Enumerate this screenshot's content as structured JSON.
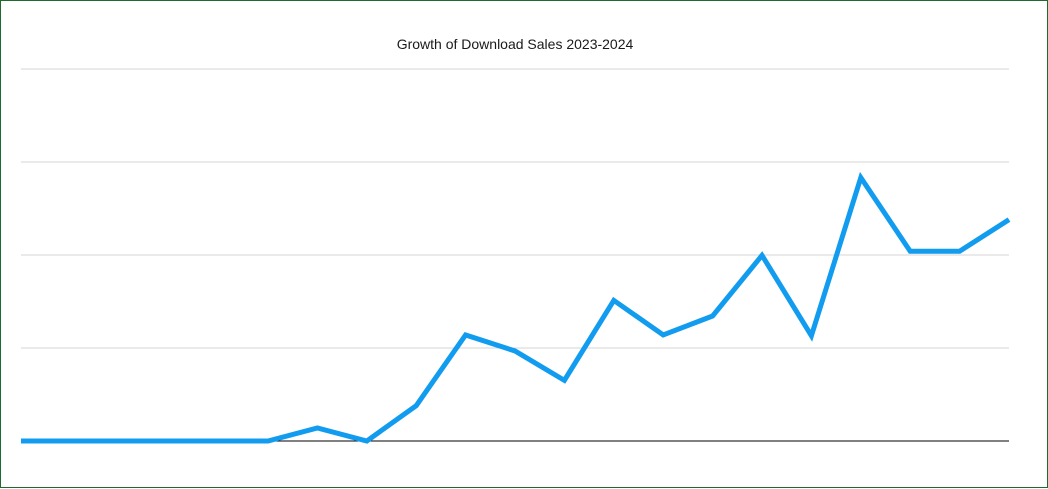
{
  "chart_data": {
    "type": "line",
    "title": "Growth of Download Sales  2023-2024",
    "xlabel": "",
    "ylabel": "",
    "ylim": [
      0,
      100
    ],
    "grid": true,
    "legend": "none",
    "x": [
      1,
      2,
      3,
      4,
      5,
      6,
      7,
      8,
      9,
      10,
      11,
      12,
      13,
      14,
      15,
      16,
      17,
      18,
      19,
      20,
      21
    ],
    "series": [
      {
        "values": [
          0,
          0,
          0,
          0,
          0,
          0,
          3.5,
          0,
          9.5,
          28.5,
          24.2,
          16.3,
          37.8,
          28.5,
          33.6,
          49.9,
          28.3,
          70.8,
          51,
          51,
          59.5
        ]
      }
    ],
    "colors": {
      "series": "#129cef",
      "grid": "#d4d4d4",
      "baseline": "#000000",
      "border": "#1f6b2e"
    }
  }
}
